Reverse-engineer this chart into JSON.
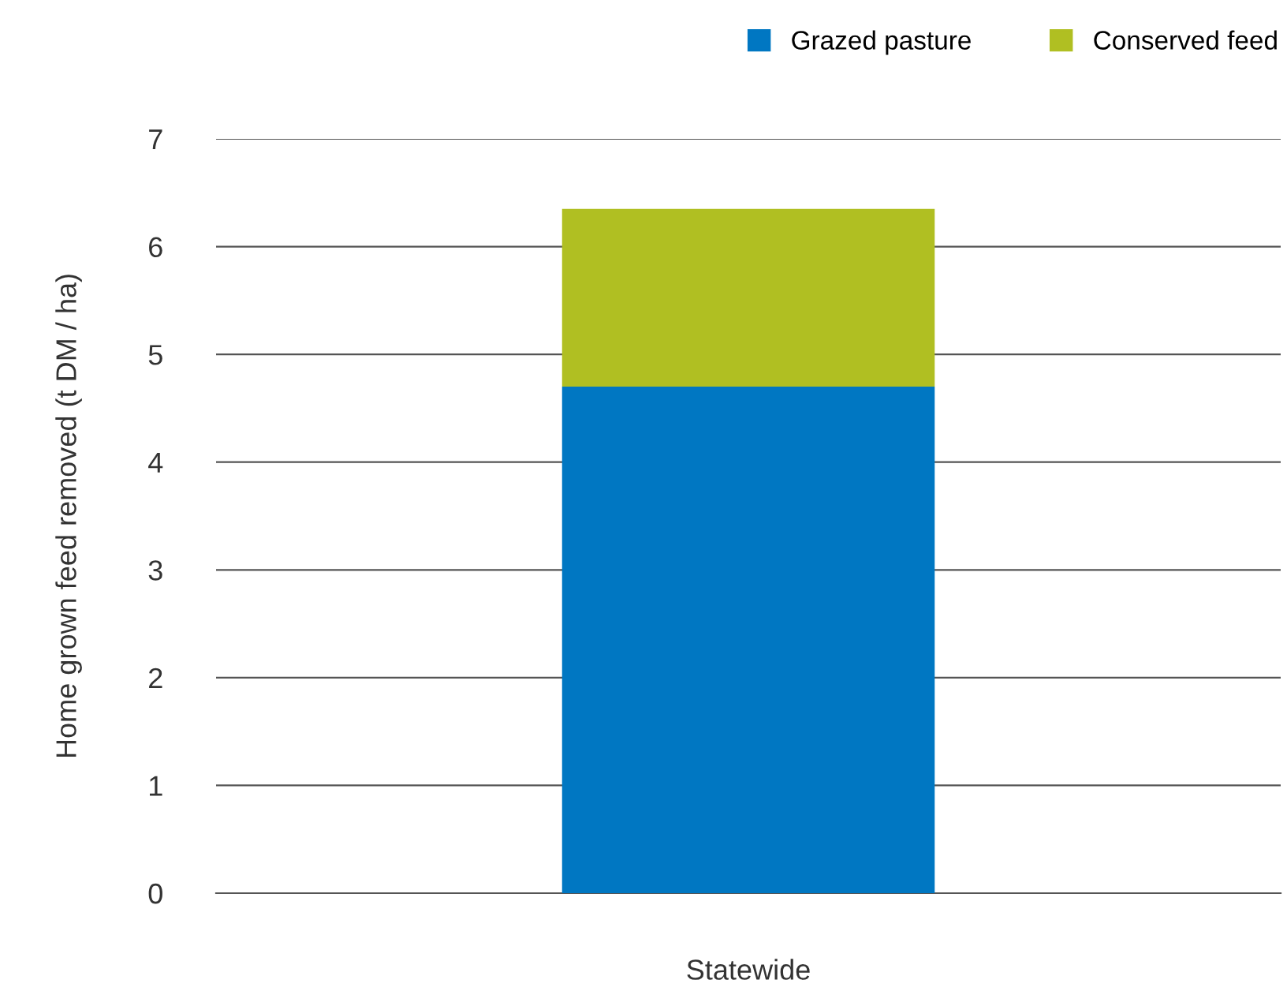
{
  "chart_data": {
    "type": "bar",
    "stacked": true,
    "ylabel": "Home grown feed removed (t DM / ha)",
    "categories": [
      "Statewide"
    ],
    "series": [
      {
        "name": "Grazed pasture",
        "color": "#0077c2",
        "values": [
          4.7
        ]
      },
      {
        "name": "Conserved feed",
        "color": "#b0bf22",
        "values": [
          1.65
        ]
      }
    ],
    "ylim": [
      0,
      7
    ],
    "yticks": [
      0,
      1,
      2,
      3,
      4,
      5,
      6,
      7
    ],
    "grid": "y",
    "legend": "top right"
  }
}
